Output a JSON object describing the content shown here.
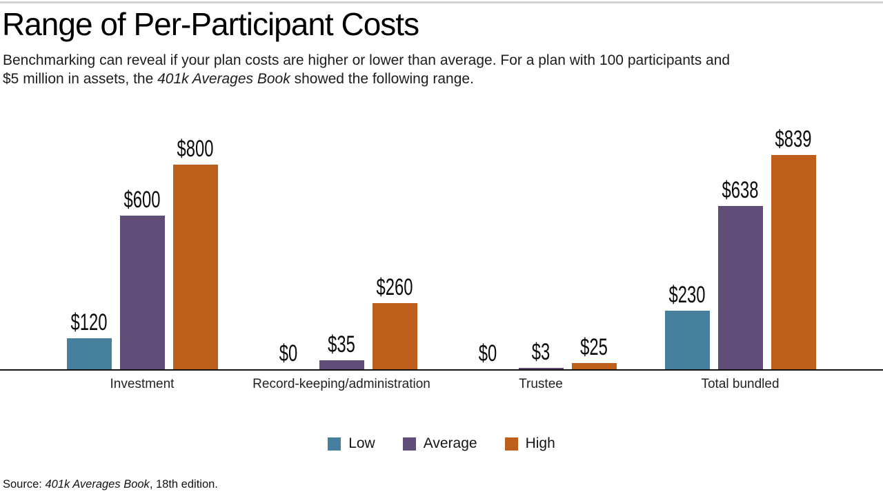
{
  "header": {
    "title": "Range of Per-Participant Costs",
    "subtitle_line1": "Benchmarking can reveal if your plan costs are higher or lower than average. For a plan with 100 participants and",
    "subtitle_line2_pre": "$5 million in assets, the ",
    "subtitle_line2_italic": "401k Averages Book",
    "subtitle_line2_post": " showed the following range."
  },
  "chart_data": {
    "type": "bar",
    "title": "Range of Per-Participant Costs",
    "categories": [
      "Investment",
      "Record-keeping/administration",
      "Trustee",
      "Total bundled"
    ],
    "series": [
      {
        "name": "Low",
        "color": "#47809E",
        "values": [
          120,
          0,
          0,
          230
        ]
      },
      {
        "name": "Average",
        "color": "#5F4D78",
        "values": [
          600,
          35,
          3,
          638
        ]
      },
      {
        "name": "High",
        "color": "#BD5F1B",
        "values": [
          800,
          260,
          25,
          839
        ]
      }
    ],
    "value_prefix": "$",
    "value_labels": [
      [
        "$120",
        "$600",
        "$800"
      ],
      [
        "$0",
        "$35",
        "$260"
      ],
      [
        "$0",
        "$3",
        "$25"
      ],
      [
        "$230",
        "$638",
        "$839"
      ]
    ],
    "ylim": [
      0,
      900
    ],
    "grid": false,
    "legend_position": "bottom",
    "legend": [
      "Low",
      "Average",
      "High"
    ],
    "axis_color": "#141414"
  },
  "footer": {
    "source_pre": "Source: ",
    "source_italic": "401k Averages Book",
    "source_post": ", 18th edition."
  }
}
